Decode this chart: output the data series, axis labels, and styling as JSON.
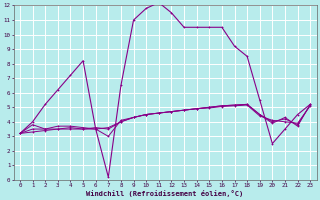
{
  "xlabel": "Windchill (Refroidissement éolien,°C)",
  "background_color": "#b8ecec",
  "grid_color": "#ffffff",
  "line_color": "#880088",
  "xlim": [
    -0.5,
    23.5
  ],
  "ylim": [
    0,
    12
  ],
  "xticks": [
    0,
    1,
    2,
    3,
    4,
    5,
    6,
    7,
    8,
    9,
    10,
    11,
    12,
    13,
    14,
    15,
    16,
    17,
    18,
    19,
    20,
    21,
    22,
    23
  ],
  "yticks": [
    0,
    1,
    2,
    3,
    4,
    5,
    6,
    7,
    8,
    9,
    10,
    11,
    12
  ],
  "main_x": [
    0,
    1,
    2,
    3,
    4,
    5,
    6,
    7,
    8,
    9,
    10,
    11,
    12,
    13,
    14,
    15,
    16,
    17,
    18,
    19,
    20,
    21,
    22,
    23
  ],
  "main_y": [
    3.2,
    4.0,
    5.2,
    6.2,
    7.2,
    8.2,
    3.5,
    0.2,
    6.5,
    11.0,
    11.8,
    12.2,
    11.5,
    10.5,
    10.5,
    10.5,
    10.5,
    9.2,
    8.5,
    5.5,
    2.5,
    3.5,
    4.5,
    5.2
  ],
  "flat1_x": [
    0,
    1,
    2,
    3,
    4,
    5,
    6,
    7,
    8,
    9,
    10,
    11,
    12,
    13,
    14,
    15,
    16,
    17,
    18,
    19,
    20,
    21,
    22,
    23
  ],
  "flat1_y": [
    3.2,
    3.8,
    3.5,
    3.7,
    3.7,
    3.6,
    3.5,
    3.0,
    4.1,
    4.3,
    4.5,
    4.6,
    4.7,
    4.8,
    4.9,
    5.0,
    5.1,
    5.15,
    5.2,
    4.5,
    3.9,
    4.3,
    3.7,
    5.2
  ],
  "flat2_x": [
    0,
    1,
    2,
    3,
    4,
    5,
    6,
    7,
    8,
    9,
    10,
    11,
    12,
    13,
    14,
    15,
    16,
    17,
    18,
    19,
    20,
    21,
    22,
    23
  ],
  "flat2_y": [
    3.2,
    3.5,
    3.5,
    3.5,
    3.6,
    3.5,
    3.6,
    3.5,
    4.0,
    4.3,
    4.5,
    4.6,
    4.7,
    4.8,
    4.9,
    5.0,
    5.1,
    5.15,
    5.2,
    4.5,
    4.0,
    4.2,
    3.8,
    5.15
  ],
  "flat3_x": [
    0,
    1,
    2,
    3,
    4,
    5,
    6,
    7,
    8,
    9,
    10,
    11,
    12,
    13,
    14,
    15,
    16,
    17,
    18,
    19,
    20,
    21,
    22,
    23
  ],
  "flat3_y": [
    3.2,
    3.3,
    3.4,
    3.5,
    3.5,
    3.5,
    3.5,
    3.6,
    4.0,
    4.3,
    4.5,
    4.6,
    4.7,
    4.8,
    4.9,
    4.95,
    5.05,
    5.1,
    5.15,
    4.4,
    4.1,
    4.0,
    3.9,
    5.1
  ],
  "marker": "+"
}
